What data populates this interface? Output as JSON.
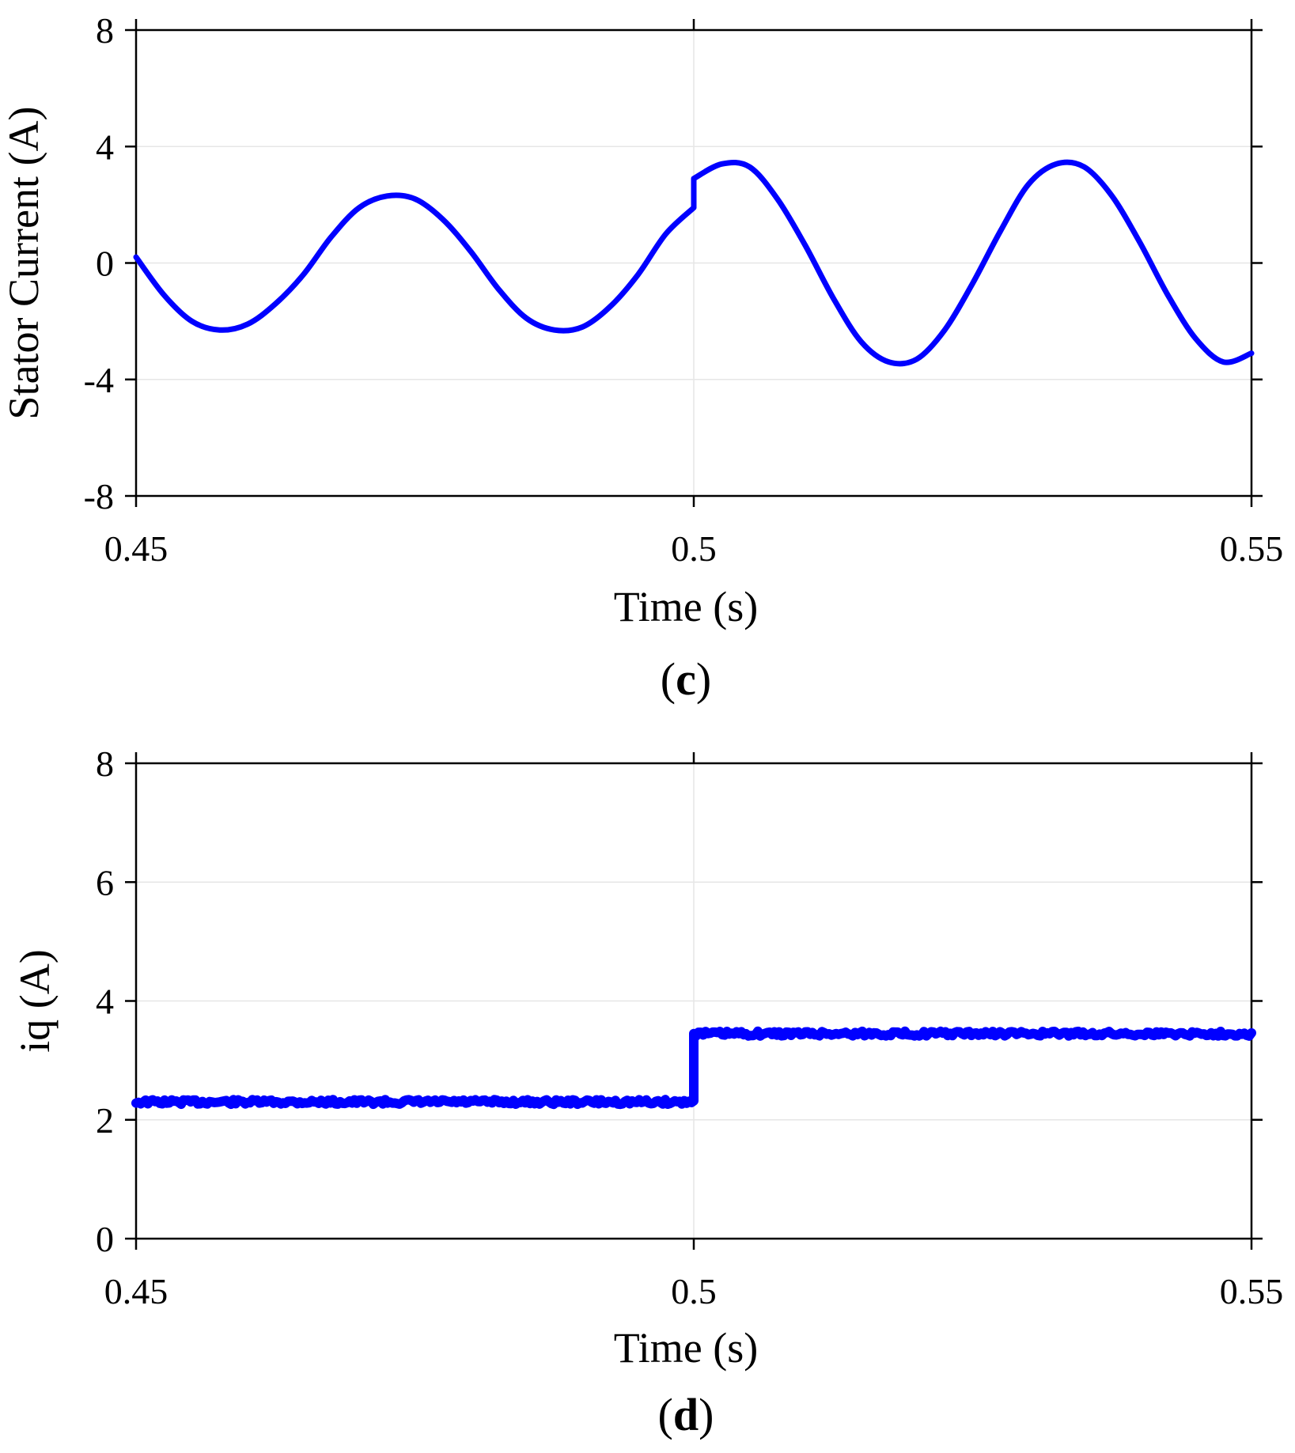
{
  "chart_data": [
    {
      "type": "line",
      "panel_label": "c",
      "title": "",
      "xlabel": "Time (s)",
      "ylabel": "Stator Current (A)",
      "xlim": [
        0.45,
        0.55
      ],
      "ylim": [
        -8,
        8
      ],
      "xticks": [
        0.45,
        0.5,
        0.55
      ],
      "xtick_labels": [
        "0.45",
        "0.5",
        "0.55"
      ],
      "yticks": [
        -8,
        -4,
        0,
        4,
        8
      ],
      "ytick_labels": [
        "-8",
        "-4",
        "0",
        "4",
        "8"
      ],
      "grid": true,
      "color": "#0000ff",
      "series": [
        {
          "name": "Stator Current",
          "x": [
            0.45,
            0.4525,
            0.455,
            0.4575,
            0.46,
            0.4625,
            0.465,
            0.4675,
            0.47,
            0.4725,
            0.475,
            0.4775,
            0.48,
            0.4825,
            0.485,
            0.4875,
            0.49,
            0.4925,
            0.495,
            0.4975,
            0.5,
            0.5,
            0.5025,
            0.505,
            0.5075,
            0.51,
            0.5125,
            0.515,
            0.5175,
            0.52,
            0.5225,
            0.525,
            0.5275,
            0.53,
            0.5325,
            0.535,
            0.5375,
            0.54,
            0.5425,
            0.545,
            0.5475,
            0.55
          ],
          "y": [
            0.2,
            -1.1,
            -2.0,
            -2.3,
            -2.1,
            -1.4,
            -0.4,
            0.9,
            1.9,
            2.3,
            2.2,
            1.5,
            0.4,
            -0.9,
            -1.9,
            -2.3,
            -2.2,
            -1.5,
            -0.4,
            1.0,
            1.9,
            2.9,
            3.4,
            3.3,
            2.2,
            0.6,
            -1.2,
            -2.7,
            -3.4,
            -3.3,
            -2.3,
            -0.7,
            1.1,
            2.7,
            3.4,
            3.3,
            2.3,
            0.7,
            -1.1,
            -2.6,
            -3.4,
            -3.1
          ]
        }
      ]
    },
    {
      "type": "line",
      "panel_label": "d",
      "title": "",
      "xlabel": "Time (s)",
      "ylabel": "iq (A)",
      "xlim": [
        0.45,
        0.55
      ],
      "ylim": [
        0,
        8
      ],
      "xticks": [
        0.45,
        0.5,
        0.55
      ],
      "xtick_labels": [
        "0.45",
        "0.5",
        "0.55"
      ],
      "yticks": [
        0,
        2,
        4,
        6,
        8
      ],
      "ytick_labels": [
        "0",
        "2",
        "4",
        "6",
        "8"
      ],
      "grid": true,
      "color": "#0000ff",
      "series": [
        {
          "name": "iq",
          "x": [
            0.45,
            0.5,
            0.5,
            0.55
          ],
          "y": [
            2.3,
            2.3,
            3.45,
            3.45
          ]
        }
      ]
    }
  ]
}
